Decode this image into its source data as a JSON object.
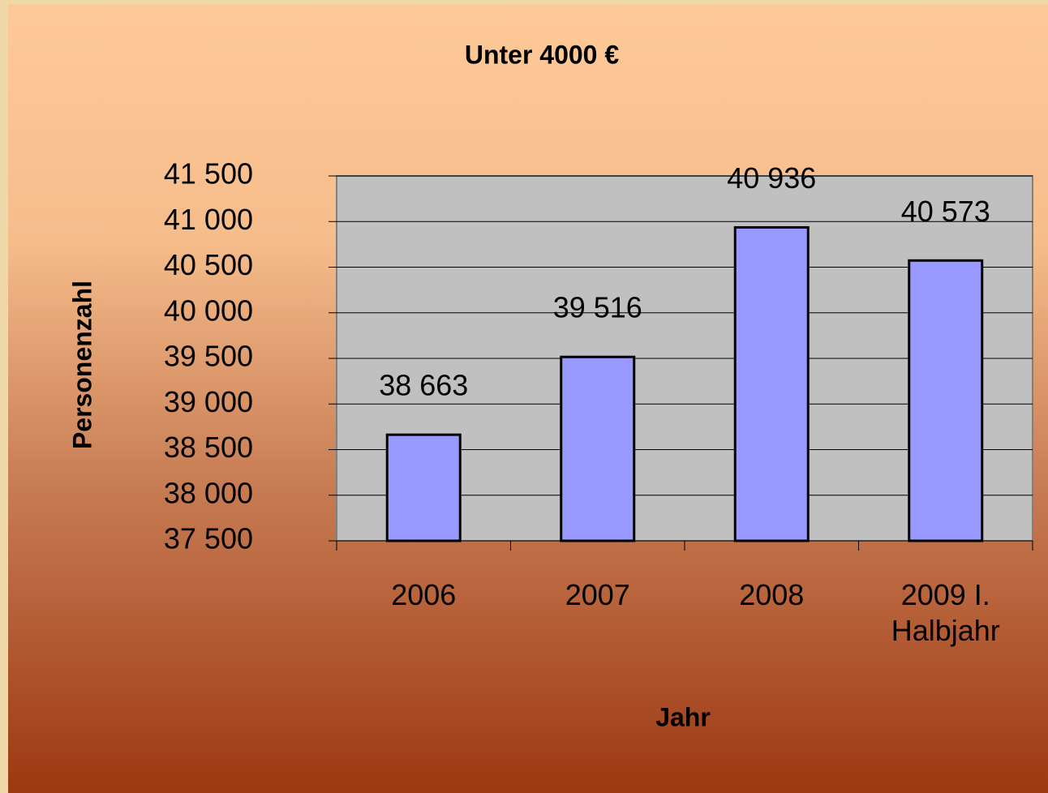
{
  "chart_data": {
    "type": "bar",
    "title": "Unter 4000 €",
    "x_label": "Jahr",
    "y_label": "Personenzahl",
    "categories": [
      "2006",
      "2007",
      "2008",
      "2009 I. Halbjahr"
    ],
    "values": [
      38663,
      39516,
      40936,
      40573
    ],
    "value_labels": [
      "38 663",
      "39 516",
      "40 936",
      "40 573"
    ],
    "color": "#9999ff",
    "ylim": [
      37500,
      41500
    ],
    "yticks": [
      {
        "value": 37500,
        "label": "37 500"
      },
      {
        "value": 38000,
        "label": "38 000"
      },
      {
        "value": 38500,
        "label": "38 500"
      },
      {
        "value": 39000,
        "label": "39 000"
      },
      {
        "value": 39500,
        "label": "39 500"
      },
      {
        "value": 40000,
        "label": "40 000"
      },
      {
        "value": 40500,
        "label": "40 500"
      },
      {
        "value": 41000,
        "label": "41 000"
      },
      {
        "value": 41500,
        "label": "41 500"
      }
    ],
    "grid": true
  }
}
